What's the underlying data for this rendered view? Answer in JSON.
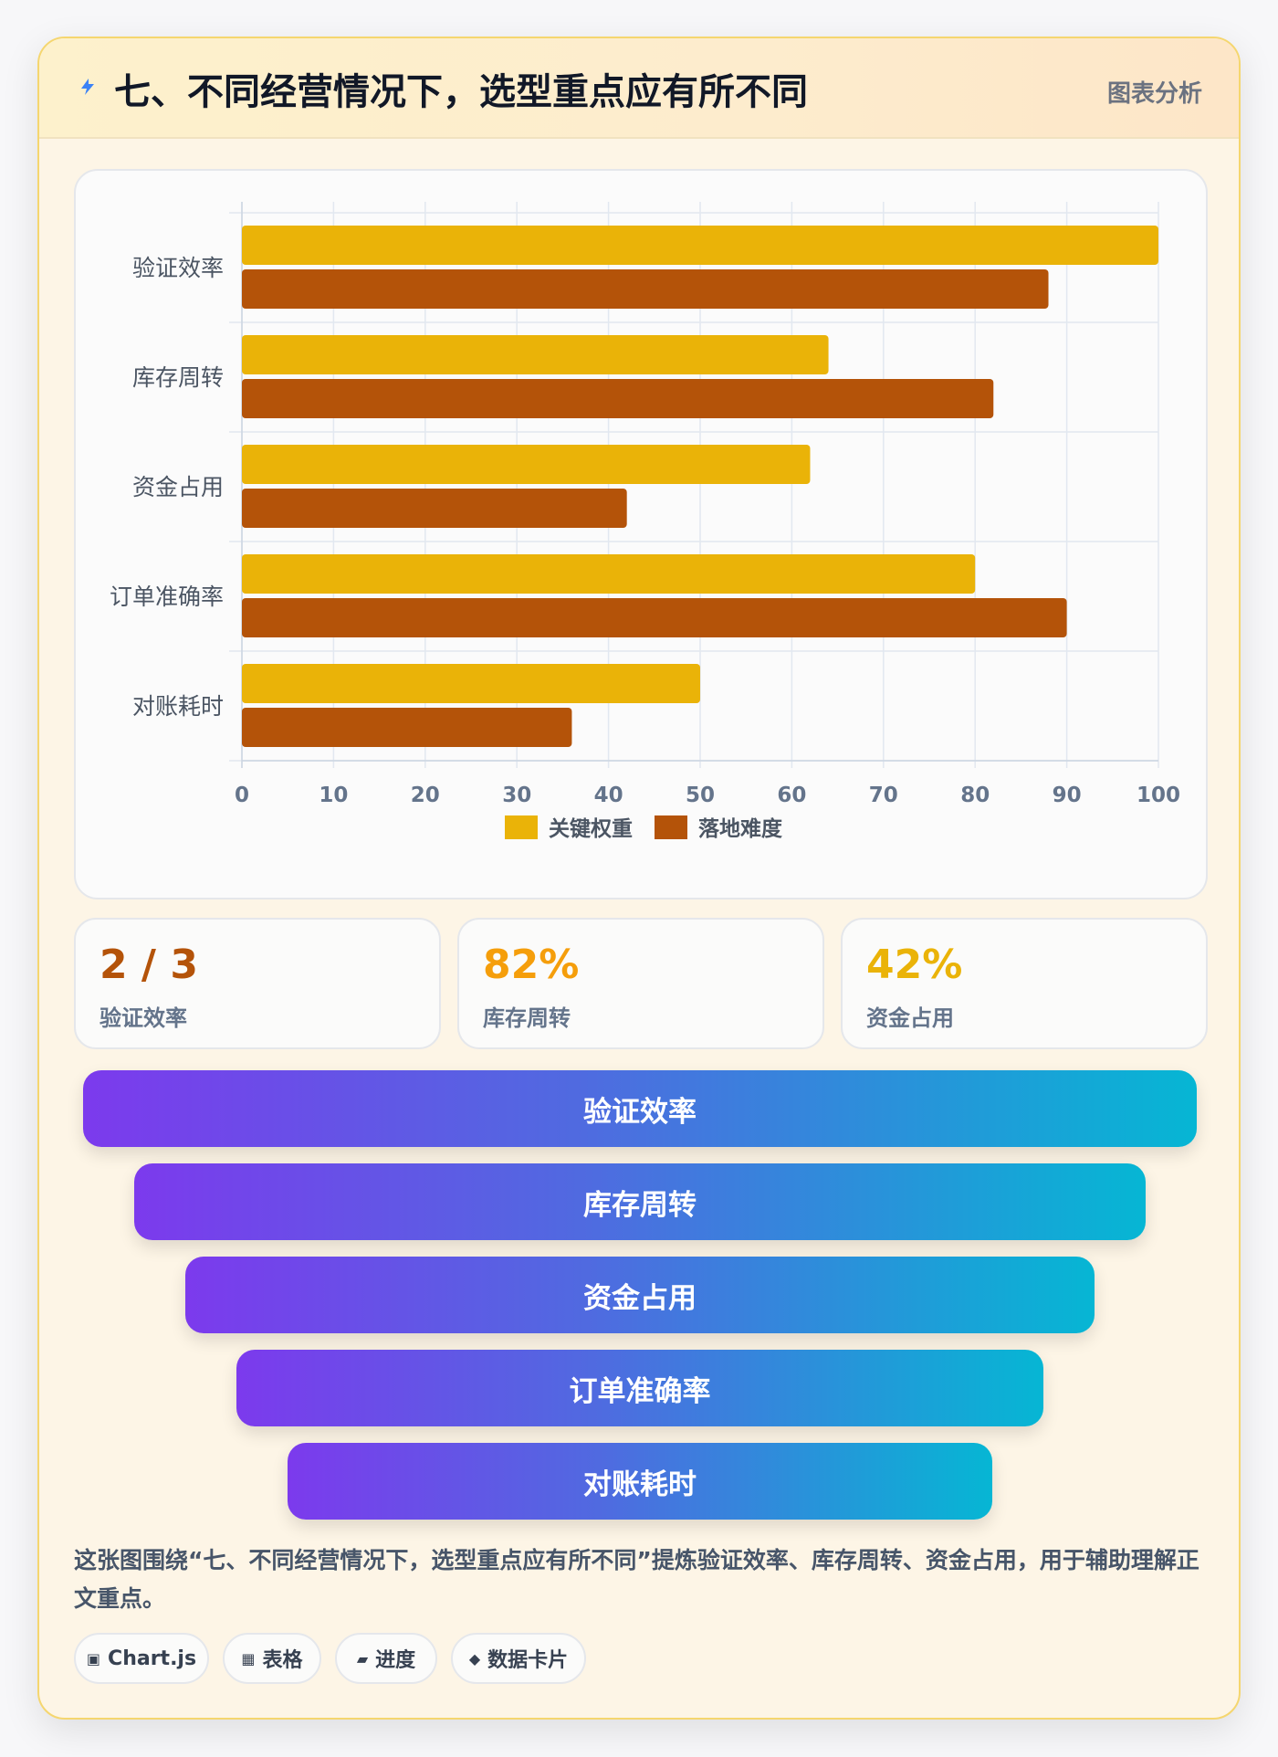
{
  "header": {
    "title": "七、不同经营情况下，选型重点应有所不同",
    "tag": "图表分析",
    "icon": "lightning-icon"
  },
  "chart_data": {
    "type": "bar",
    "orientation": "horizontal",
    "categories": [
      "验证效率",
      "库存周转",
      "资金占用",
      "订单准确率",
      "对账耗时"
    ],
    "series": [
      {
        "name": "关键权重",
        "values": [
          100,
          64,
          62,
          80,
          50
        ],
        "color": "#eab308"
      },
      {
        "name": "落地难度",
        "values": [
          88,
          82,
          42,
          90,
          36
        ],
        "color": "#b45309"
      }
    ],
    "xlim": [
      0,
      100
    ],
    "xticks": [
      0,
      10,
      20,
      30,
      40,
      50,
      60,
      70,
      80,
      90,
      100
    ],
    "grid": true,
    "legend": "bottom"
  },
  "stats": [
    {
      "value": "2 / 3",
      "label": "验证效率",
      "color": "#b45309"
    },
    {
      "value": "82%",
      "label": "库存周转",
      "color": "#f59e0b"
    },
    {
      "value": "42%",
      "label": "资金占用",
      "color": "#eab308"
    }
  ],
  "funnel": [
    "验证效率",
    "库存周转",
    "资金占用",
    "订单准确率",
    "对账耗时"
  ],
  "caption": "这张图围绕“七、不同经营情况下，选型重点应有所不同”提炼验证效率、库存周转、资金占用，用于辅助理解正文重点。",
  "chips": [
    {
      "icon": "▣",
      "icon_name": "chart-icon",
      "label": "Chart.js"
    },
    {
      "icon": "▦",
      "icon_name": "table-icon",
      "label": "表格"
    },
    {
      "icon": "▰",
      "icon_name": "progress-icon",
      "label": "进度"
    },
    {
      "icon": "◆",
      "icon_name": "diamond-icon",
      "label": "数据卡片"
    }
  ]
}
